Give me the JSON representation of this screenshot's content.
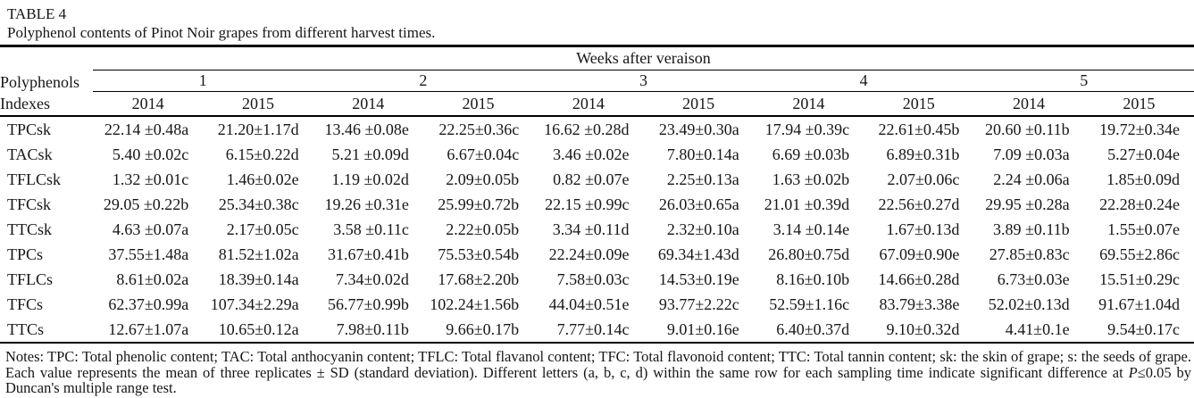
{
  "table": {
    "caption_label": "TABLE 4",
    "caption_text": "Polyphenol contents of Pinot Noir grapes from different harvest times.",
    "header": {
      "row_label_line1": "Polyphenols",
      "row_label_line2": "Indexes",
      "span_title": "Weeks after veraison",
      "weeks": [
        "1",
        "2",
        "3",
        "4",
        "5"
      ],
      "years": [
        "2014",
        "2015",
        "2014",
        "2015",
        "2014",
        "2015",
        "2014",
        "2015",
        "2014",
        "2015"
      ]
    },
    "rows": [
      {
        "label": "TPCsk",
        "values": [
          "22.14 ±0.48a",
          "21.20±1.17d",
          "13.46 ±0.08e",
          "22.25±0.36c",
          "16.62 ±0.28d",
          "23.49±0.30a",
          "17.94 ±0.39c",
          "22.61±0.45b",
          "20.60 ±0.11b",
          "19.72±0.34e"
        ]
      },
      {
        "label": "TACsk",
        "values": [
          "5.40 ±0.02c",
          "6.15±0.22d",
          "5.21 ±0.09d",
          "6.67±0.04c",
          "3.46 ±0.02e",
          "7.80±0.14a",
          "6.69 ±0.03b",
          "6.89±0.31b",
          "7.09 ±0.03a",
          "5.27±0.04e"
        ]
      },
      {
        "label": "TFLCsk",
        "values": [
          "1.32 ±0.01c",
          "1.46±0.02e",
          "1.19 ±0.02d",
          "2.09±0.05b",
          "0.82 ±0.07e",
          "2.25±0.13a",
          "1.63 ±0.02b",
          "2.07±0.06c",
          "2.24 ±0.06a",
          "1.85±0.09d"
        ]
      },
      {
        "label": "TFCsk",
        "values": [
          "29.05 ±0.22b",
          "25.34±0.38c",
          "19.26 ±0.31e",
          "25.99±0.72b",
          "22.15 ±0.99c",
          "26.03±0.65a",
          "21.01 ±0.39d",
          "22.56±0.27d",
          "29.95 ±0.28a",
          "22.28±0.24e"
        ]
      },
      {
        "label": "TTCsk",
        "values": [
          "4.63 ±0.07a",
          "2.17±0.05c",
          "3.58 ±0.11c",
          "2.22±0.05b",
          "3.34 ±0.11d",
          "2.32±0.10a",
          "3.14 ±0.14e",
          "1.67±0.13d",
          "3.89 ±0.11b",
          "1.55±0.07e"
        ]
      },
      {
        "label": "TPCs",
        "values": [
          "37.55±1.48a",
          "81.52±1.02a",
          "31.67±0.41b",
          "75.53±0.54b",
          "22.24±0.09e",
          "69.34±1.43d",
          "26.80±0.75d",
          "67.09±0.90e",
          "27.85±0.83c",
          "69.55±2.86c"
        ]
      },
      {
        "label": "TFLCs",
        "values": [
          "8.61±0.02a",
          "18.39±0.14a",
          "7.34±0.02d",
          "17.68±2.20b",
          "7.58±0.03c",
          "14.53±0.19e",
          "8.16±0.10b",
          "14.66±0.28d",
          "6.73±0.03e",
          "15.51±0.29c"
        ]
      },
      {
        "label": "TFCs",
        "values": [
          "62.37±0.99a",
          "107.34±2.29a",
          "56.77±0.99b",
          "102.24±1.56b",
          "44.04±0.51e",
          "93.77±2.22c",
          "52.59±1.16c",
          "83.79±3.38e",
          "52.02±0.13d",
          "91.67±1.04d"
        ]
      },
      {
        "label": "TTCs",
        "values": [
          "12.67±1.07a",
          "10.65±0.12a",
          "7.98±0.11b",
          "9.66±0.17b",
          "7.77±0.14c",
          "9.01±0.16e",
          "6.40±0.37d",
          "9.10±0.32d",
          "4.41±0.1e",
          "9.54±0.17c"
        ]
      }
    ]
  },
  "notes": {
    "before_p": "Notes: TPC: Total phenolic content; TAC: Total anthocyanin content; TFLC: Total flavanol content; TFC: Total flavonoid content; TTC: Total tannin content; sk: the skin of grape; s: the seeds of grape. Each value represents the mean of three replicates ± SD (standard deviation). Different letters (a, b, c, d) within the same row for each sampling time indicate significant difference at ",
    "p_italic": "P",
    "after_p": "≤0.05 by Duncan's multiple range test."
  },
  "colors": {
    "text": "#161616",
    "rule": "#000000",
    "background": "#ffffff"
  }
}
